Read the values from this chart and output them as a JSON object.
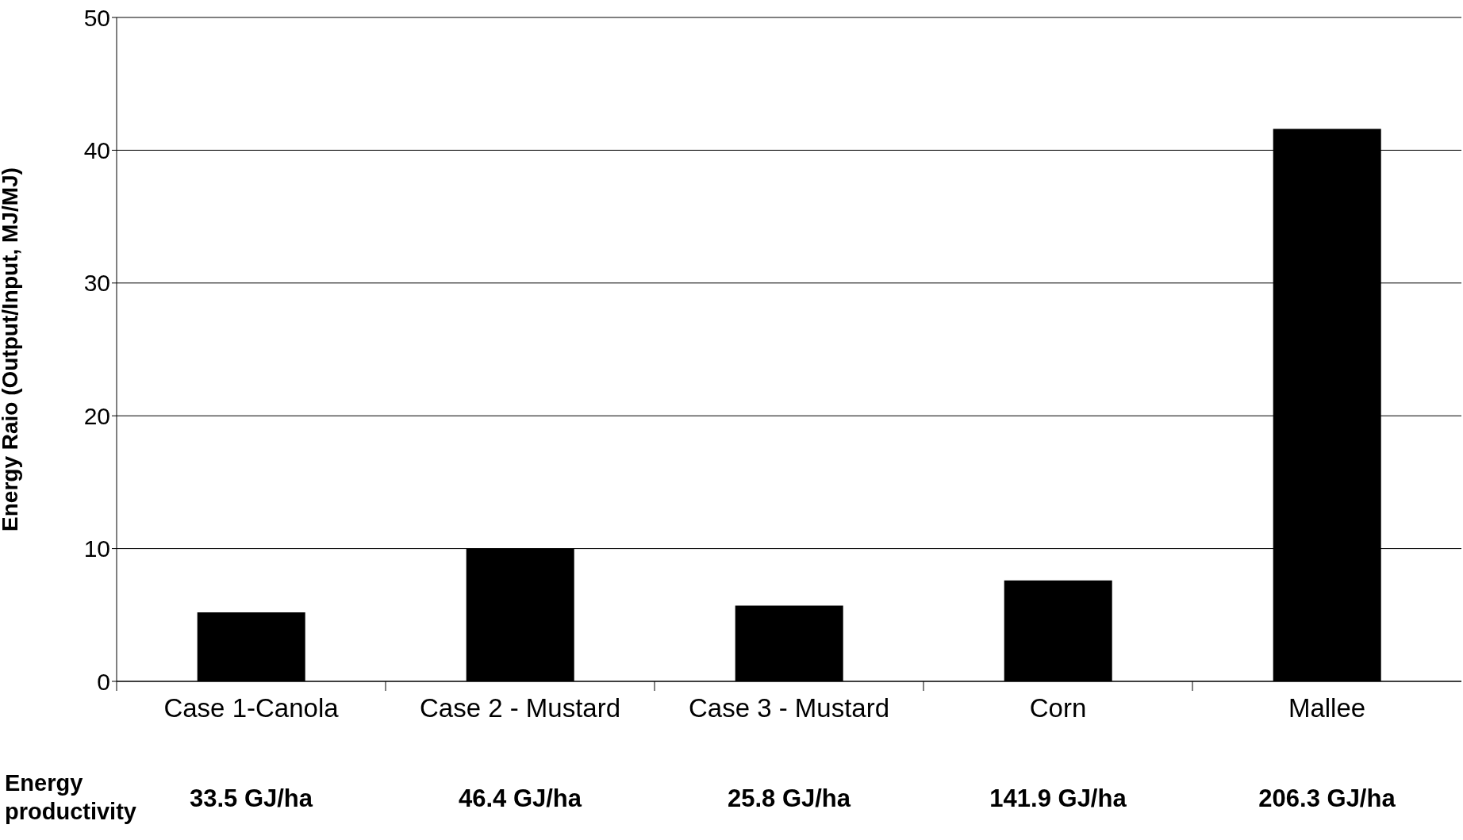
{
  "chart_data": {
    "type": "bar",
    "ylabel": "Energy Raio (Output/Input, MJ/MJ)",
    "categories": [
      "Case 1-Canola",
      "Case 2 - Mustard",
      "Case 3 - Mustard",
      "Corn",
      "Mallee"
    ],
    "values": [
      5.2,
      10.0,
      5.7,
      7.6,
      41.6
    ],
    "color": "#000000",
    "ylim": [
      0,
      50
    ],
    "yticks": [
      0,
      10,
      20,
      30,
      40,
      50
    ],
    "grid": "y",
    "annotations": [
      "Energy productivity",
      "33.5 GJ/ha",
      "46.4 GJ/ha",
      "25.8 GJ/ha",
      "141.9 GJ/ha",
      "206.3 GJ/ha"
    ]
  }
}
